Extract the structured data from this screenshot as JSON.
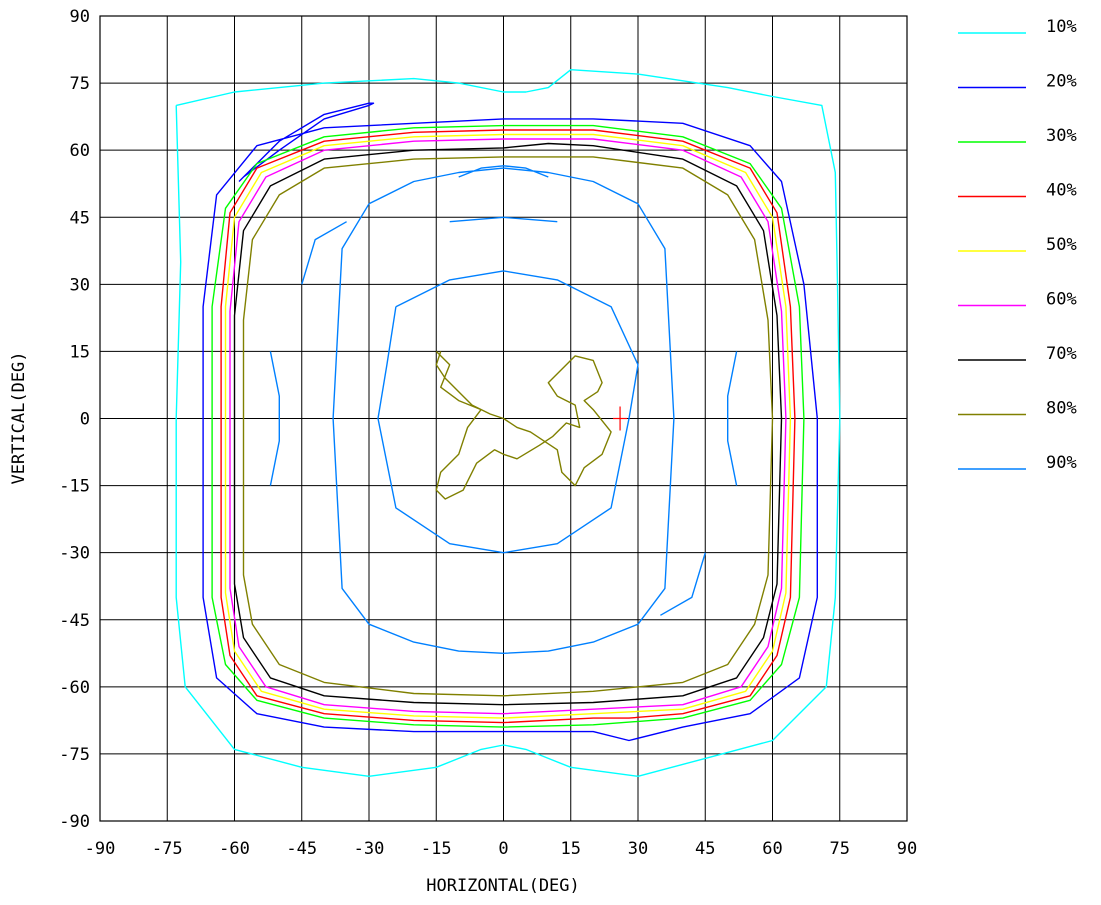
{
  "chart_data": {
    "type": "contour",
    "xlabel": "HORIZONTAL(DEG)",
    "ylabel": "VERTICAL(DEG)",
    "xlim": [
      -90,
      90
    ],
    "ylim": [
      -90,
      90
    ],
    "grid": true,
    "xticks": [
      -90,
      -75,
      -60,
      -45,
      -30,
      -15,
      0,
      15,
      30,
      45,
      60,
      75,
      90
    ],
    "yticks": [
      -90,
      -75,
      -60,
      -45,
      -30,
      -15,
      0,
      15,
      30,
      45,
      60,
      75,
      90
    ],
    "legend_position": "right",
    "marker": {
      "x": 26,
      "y": 0,
      "color": "#ff0000",
      "symbol": "+"
    },
    "series": [
      {
        "name": "10%",
        "color": "#00ffff",
        "x": [
          -73,
          -60,
          -40,
          -20,
          -10,
          0,
          5,
          10,
          15,
          30,
          50,
          60,
          71,
          74,
          74.5,
          75,
          74,
          72,
          60,
          45,
          30,
          15,
          10,
          5,
          0,
          -5,
          -10,
          -15,
          -30,
          -45,
          -60,
          -71,
          -72,
          -73,
          -73,
          -72,
          -73
        ],
        "y": [
          70,
          73,
          75,
          76,
          75,
          73,
          73,
          74,
          78,
          77,
          74,
          72,
          70,
          55,
          30,
          0,
          -40,
          -60,
          -72,
          -76,
          -80,
          -78,
          -76,
          -74,
          -73,
          -74,
          -76,
          -78,
          -80,
          -78,
          -74,
          -60,
          -50,
          -40,
          0,
          35,
          70
        ]
      },
      {
        "name": "20%",
        "color": "#0000ff",
        "x": [
          -58,
          -50,
          -40,
          -30,
          -29,
          -30,
          -40,
          -50,
          -58,
          -59,
          null,
          -20,
          0,
          20,
          40,
          55,
          62,
          67,
          70,
          70,
          66,
          55,
          40,
          28,
          20,
          0,
          -20,
          -40,
          -55,
          -64,
          -67,
          -67,
          -64,
          -55,
          -40,
          -20
        ],
        "y": [
          54,
          62,
          68,
          70.5,
          70.5,
          70,
          67,
          60,
          54,
          53,
          null,
          66,
          67,
          67,
          66,
          61,
          53,
          30,
          0,
          -40,
          -58,
          -66,
          -69,
          -72,
          -70,
          -70,
          -70,
          -69,
          -66,
          -58,
          -40,
          25,
          50,
          61,
          65,
          66
        ]
      },
      {
        "name": "30%",
        "color": "#00ff00",
        "x": [
          -20,
          0,
          20,
          40,
          55,
          62,
          66,
          67,
          66,
          62,
          55,
          40,
          20,
          0,
          -20,
          -40,
          -55,
          -62,
          -65,
          -65,
          -62,
          -55,
          -40,
          -20
        ],
        "y": [
          65,
          65.5,
          65.5,
          63,
          57,
          47,
          25,
          0,
          -40,
          -55,
          -63,
          -67,
          -68.5,
          -69,
          -68.5,
          -67,
          -63,
          -55,
          -40,
          25,
          47,
          57,
          63,
          65
        ]
      },
      {
        "name": "40%",
        "color": "#ff0000",
        "x": [
          -20,
          0,
          20,
          40,
          55,
          61,
          64,
          65,
          64,
          61,
          55,
          40,
          28,
          20,
          0,
          -20,
          -40,
          -55,
          -61,
          -63,
          -63,
          -61,
          -55,
          -40,
          -20
        ],
        "y": [
          64,
          64.5,
          64.5,
          62,
          56,
          46,
          25,
          0,
          -40,
          -53,
          -62,
          -66,
          -67,
          -67,
          -68,
          -67.5,
          -66,
          -62,
          -53,
          -40,
          25,
          46,
          56,
          62,
          64
        ]
      },
      {
        "name": "50%",
        "color": "#ffff00",
        "x": [
          -20,
          0,
          20,
          40,
          54,
          60,
          63,
          64,
          63,
          60,
          54,
          40,
          20,
          0,
          -20,
          -40,
          -54,
          -60,
          -62,
          -62,
          -60,
          -54,
          -40,
          -20
        ],
        "y": [
          63,
          63.5,
          63.5,
          61,
          55,
          45,
          25,
          0,
          -39,
          -52,
          -61,
          -65,
          -66,
          -67,
          -66.5,
          -65,
          -61,
          -52,
          -39,
          25,
          45,
          55,
          61,
          63
        ]
      },
      {
        "name": "60%",
        "color": "#ff00ff",
        "x": [
          -20,
          0,
          20,
          40,
          53,
          59,
          62,
          63,
          62,
          59,
          53,
          40,
          20,
          0,
          -20,
          -40,
          -53,
          -59,
          -61,
          -61,
          -59,
          -53,
          -40,
          -20
        ],
        "y": [
          62,
          62.5,
          62.5,
          60,
          54,
          44,
          24,
          0,
          -38,
          -51,
          -60,
          -64,
          -65,
          -66,
          -65.5,
          -64,
          -60,
          -51,
          -38,
          24,
          44,
          54,
          60,
          62
        ]
      },
      {
        "name": "70%",
        "color": "#000000",
        "x": [
          -20,
          0,
          10,
          20,
          40,
          52,
          58,
          61,
          62,
          61,
          58,
          52,
          40,
          20,
          0,
          -20,
          -40,
          -52,
          -58,
          -60,
          -60,
          -58,
          -52,
          -40,
          -20
        ],
        "y": [
          60,
          60.5,
          61.5,
          61,
          58,
          52,
          42,
          23,
          0,
          -37,
          -49,
          -58,
          -62,
          -63.5,
          -64,
          -63.5,
          -62,
          -58,
          -49,
          -37,
          23,
          42,
          52,
          58,
          60
        ]
      },
      {
        "name": "80%",
        "color": "#808000",
        "x": [
          -20,
          0,
          20,
          40,
          50,
          56,
          59,
          60,
          59,
          56,
          50,
          40,
          20,
          0,
          -20,
          -40,
          -50,
          -56,
          -58,
          -58,
          -56,
          -50,
          -40,
          -20,
          null,
          -15,
          -12,
          -14,
          -10,
          -5,
          -8,
          -10,
          -14,
          -15,
          -13,
          -9,
          -6,
          -2,
          0,
          3,
          8,
          11,
          14,
          17,
          16,
          12,
          10,
          12,
          16,
          20,
          22,
          21,
          18,
          20,
          24,
          22,
          18,
          16,
          13,
          12,
          9,
          6,
          3,
          0,
          -3,
          -7,
          -10,
          -13,
          -15,
          -14
        ],
        "y": [
          58,
          58.5,
          58.5,
          56,
          50,
          40,
          22,
          0,
          -35,
          -46,
          -55,
          -59,
          -61,
          -62,
          -61.5,
          -59,
          -55,
          -46,
          -35,
          22,
          40,
          50,
          56,
          58,
          null,
          15,
          12,
          7,
          4,
          2,
          -2,
          -8,
          -12,
          -16,
          -18,
          -16,
          -10,
          -7,
          -8,
          -9,
          -6,
          -4,
          -1,
          -2,
          3,
          5,
          8,
          10,
          14,
          13,
          8,
          6,
          4,
          2,
          -3,
          -8,
          -11,
          -15,
          -12,
          -7,
          -5,
          -3,
          -2,
          0,
          1,
          3,
          6,
          9,
          12,
          15
        ]
      },
      {
        "name": "90%",
        "color": "#0080ff",
        "x": [
          -30,
          -20,
          -10,
          0,
          10,
          20,
          30,
          36,
          38,
          36,
          30,
          20,
          10,
          0,
          -10,
          -20,
          -30,
          -36,
          -38,
          -36,
          -30,
          null,
          -24,
          -12,
          0,
          12,
          24,
          30,
          28,
          24,
          12,
          0,
          -12,
          -24,
          -28,
          -26,
          -24,
          null,
          -10,
          -5,
          0,
          5,
          10,
          null,
          -12,
          0,
          12,
          null,
          -45,
          -42,
          -35,
          null,
          45,
          42,
          35,
          null,
          -52,
          -50,
          -50,
          -52,
          null,
          52,
          50,
          50,
          52
        ],
        "y": [
          48,
          53,
          55,
          56,
          55,
          53,
          48,
          38,
          0,
          -38,
          -46,
          -50,
          -52,
          -52.5,
          -52,
          -50,
          -46,
          -38,
          0,
          38,
          48,
          null,
          25,
          31,
          33,
          31,
          25,
          12,
          0,
          -20,
          -28,
          -30,
          -28,
          -20,
          0,
          12,
          25,
          null,
          54,
          56,
          56.5,
          56,
          54,
          null,
          44,
          45,
          44,
          null,
          30,
          40,
          44,
          null,
          -30,
          -40,
          -44,
          null,
          15,
          5,
          -5,
          -15,
          null,
          15,
          5,
          -5,
          -15
        ]
      }
    ]
  }
}
